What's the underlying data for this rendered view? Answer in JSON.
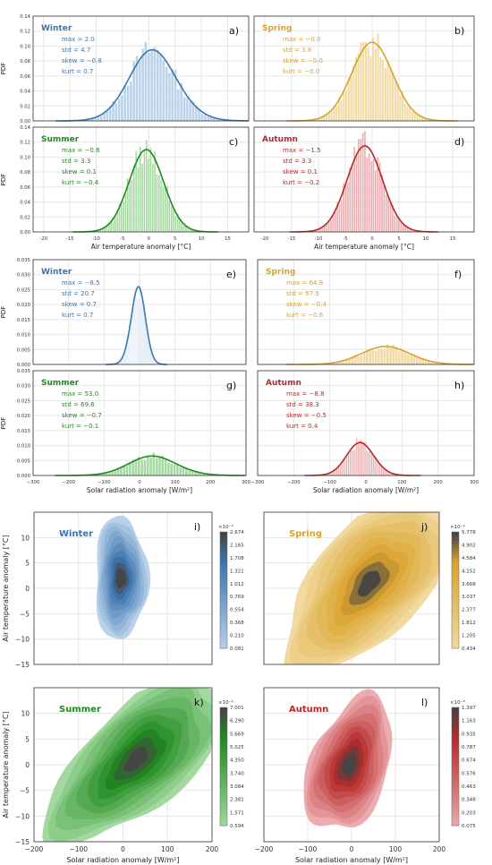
{
  "colors": {
    "Winter": "#3b75af",
    "Spring": "#d9a22c",
    "Summer": "#1f8a1f",
    "Autumn": "#b52a2a",
    "Winter_light": "#b5cfe8",
    "Spring_light": "#f0d79a",
    "Summer_light": "#9ed79a",
    "Autumn_light": "#eba6aa",
    "grid": "#e6e6e6",
    "axis": "#000000"
  },
  "chart_data": [
    {
      "type": "histogram_kde",
      "ylabel": "PDF",
      "xlabel": "Air temperature anomaly [°C]",
      "xlim": [
        -22,
        19
      ],
      "ylim": [
        0,
        0.14
      ],
      "xticks": [
        "-20",
        "-15",
        "-10",
        "-5",
        "0",
        "5",
        "10",
        "15"
      ],
      "yticks": [
        "0.00",
        "0.02",
        "0.04",
        "0.06",
        "0.08",
        "0.10",
        "0.12",
        "0.14"
      ],
      "panels": [
        {
          "panel_label": "a)",
          "season": "Winter",
          "stats": [
            "max = 2.0",
            "std = 4.7",
            "skew = −0.8",
            "kurt = 0.7"
          ],
          "mean": 2.0,
          "std": 4.7,
          "skew": -0.8,
          "peak": 0.095
        },
        {
          "panel_label": "b)",
          "season": "Spring",
          "stats": [
            "max = −0.0",
            "std = 3.8",
            "skew = −0.0",
            "kurt = −0.0"
          ],
          "mean": 0.0,
          "std": 3.8,
          "skew": 0.0,
          "peak": 0.105
        },
        {
          "panel_label": "c)",
          "season": "Summer",
          "stats": [
            "max = −0.6",
            "std = 3.3",
            "skew = 0.1",
            "kurt = −0.4"
          ],
          "mean": -0.6,
          "std": 3.3,
          "skew": 0.1,
          "peak": 0.11
        },
        {
          "panel_label": "d)",
          "season": "Autumn",
          "stats": [
            "max = −1.5",
            "std = 3.3",
            "skew = 0.1",
            "kurt = −0.2"
          ],
          "mean": -1.5,
          "std": 3.3,
          "skew": 0.1,
          "peak": 0.115
        }
      ]
    },
    {
      "type": "histogram_kde",
      "ylabel": "PDF",
      "xlabel": "Solar radiation anomaly [W/m²]",
      "xlim": [
        -300,
        300
      ],
      "ylim": [
        0,
        0.035
      ],
      "xticks": [
        "−300",
        "−200",
        "−100",
        "0",
        "100",
        "200",
        "300"
      ],
      "yticks": [
        "0.000",
        "0.005",
        "0.010",
        "0.015",
        "0.020",
        "0.025",
        "0.030",
        "0.035"
      ],
      "panels": [
        {
          "panel_label": "e)",
          "season": "Winter",
          "stats": [
            "max = −8.5",
            "std = 20.7",
            "skew = 0.7",
            "kurt = 0.7"
          ],
          "mean": -8.5,
          "std": 20.7,
          "skew": 0.7,
          "peak": 0.026
        },
        {
          "panel_label": "f)",
          "season": "Spring",
          "stats": [
            "max = 64.8",
            "std = 67.9",
            "skew = −0.4",
            "kurt = −0.6"
          ],
          "mean": 64.8,
          "std": 67.9,
          "skew": -0.4,
          "peak": 0.006
        },
        {
          "panel_label": "g)",
          "season": "Summer",
          "stats": [
            "max = 53.0",
            "std = 69.6",
            "skew = −0.7",
            "kurt = −0.1"
          ],
          "mean": 53.0,
          "std": 69.6,
          "skew": -0.7,
          "peak": 0.0065
        },
        {
          "panel_label": "h)",
          "season": "Autumn",
          "stats": [
            "max = −8.8",
            "std = 38.3",
            "skew = −0.5",
            "kurt = 0.4"
          ],
          "mean": -8.8,
          "std": 38.3,
          "skew": -0.5,
          "peak": 0.011
        }
      ]
    },
    {
      "type": "kde2d",
      "xlabel": "Solar radiation anomaly [W/m²]",
      "ylabel": "Air temperature anomaly [°C]",
      "xlim": [
        -200,
        200
      ],
      "ylim": [
        -15,
        15
      ],
      "xticks": [
        "−200",
        "−100",
        "0",
        "100",
        "200"
      ],
      "yticks": [
        "−15",
        "−10",
        "−5",
        "0",
        "5",
        "10"
      ],
      "panels": [
        {
          "panel_label": "i)",
          "season": "Winter",
          "scale": "×10⁻³",
          "colorbar_ticks": [
            "2.674",
            "2.165",
            "1.708",
            "1.321",
            "1.012",
            "0.769",
            "0.554",
            "0.368",
            "0.210",
            "0.081"
          ],
          "center": [
            -5,
            2
          ],
          "spread": [
            28,
            6
          ]
        },
        {
          "panel_label": "j)",
          "season": "Spring",
          "scale": "×10⁻⁴",
          "colorbar_ticks": [
            "5.778",
            "4.902",
            "4.584",
            "4.152",
            "3.668",
            "3.037",
            "2.377",
            "1.812",
            "1.205",
            "0.434"
          ],
          "center": [
            40,
            1
          ],
          "spread": [
            100,
            7
          ]
        },
        {
          "panel_label": "k)",
          "season": "Summer",
          "scale": "×10⁻⁴",
          "colorbar_ticks": [
            "7.001",
            "6.290",
            "5.669",
            "5.025",
            "4.350",
            "3.740",
            "3.084",
            "2.381",
            "1.571",
            "0.594"
          ],
          "center": [
            30,
            1
          ],
          "spread": [
            105,
            6
          ]
        },
        {
          "panel_label": "l)",
          "season": "Autumn",
          "scale": "×10⁻³",
          "colorbar_ticks": [
            "1.397",
            "1.163",
            "0.935",
            "0.787",
            "0.674",
            "0.576",
            "0.463",
            "0.348",
            "0.203",
            "0.075"
          ],
          "center": [
            -5,
            0
          ],
          "spread": [
            50,
            6
          ]
        }
      ]
    }
  ]
}
